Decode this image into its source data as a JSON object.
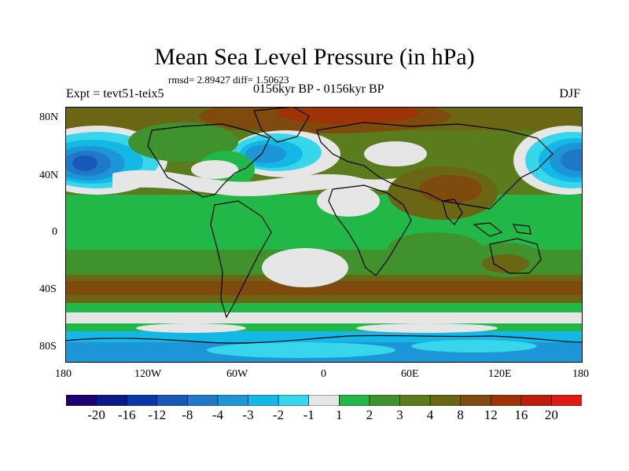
{
  "title": "Mean Sea Level Pressure (in hPa)",
  "stats": "rmsd= 2.89427 diff= 1.50623",
  "experiment": "Expt = tevt51-teix5",
  "period": "0156kyr BP - 0156kyr BP",
  "season": "DJF",
  "lat_labels": [
    "80N",
    "40N",
    "0",
    "40S",
    "80S"
  ],
  "lon_labels": [
    "180",
    "120W",
    "60W",
    "0",
    "60E",
    "120E",
    "180"
  ],
  "colorbar": {
    "labels": [
      "-20",
      "-16",
      "-12",
      "-8",
      "-4",
      "-3",
      "-2",
      "-1",
      "1",
      "2",
      "3",
      "4",
      "8",
      "12",
      "16",
      "20"
    ],
    "colors": [
      "#1a0070",
      "#0a1a8c",
      "#0838a8",
      "#1a58b8",
      "#1f78c8",
      "#1d96d8",
      "#14b8e6",
      "#38d6ea",
      "#e6e6e6",
      "#22b848",
      "#40922c",
      "#5a7c1c",
      "#6a6614",
      "#7e4a0e",
      "#a03208",
      "#c01c0c",
      "#dd1a14"
    ]
  }
}
